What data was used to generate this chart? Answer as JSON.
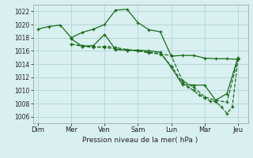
{
  "background_color": "#d8f0f0",
  "grid_color": "#b8d8d8",
  "line_color": "#1a6b1a",
  "title": "Pression niveau de la mer( hPa )",
  "ylabel_ticks": [
    1006,
    1008,
    1010,
    1012,
    1014,
    1016,
    1018,
    1020,
    1022
  ],
  "ylim": [
    1005.0,
    1023.0
  ],
  "xlabels": [
    "Dim",
    "Mer",
    "Ven",
    "Sam",
    "Lun",
    "Mar",
    "Jeu"
  ],
  "xtick_pos": [
    0,
    1,
    2,
    3,
    4,
    5,
    6
  ],
  "series": [
    {
      "x": [
        0,
        0.33,
        0.67,
        1.0,
        1.33,
        1.67,
        2.0,
        2.33,
        2.67,
        3.0,
        3.33,
        3.67,
        4.0,
        4.33,
        4.67,
        5.0,
        5.33,
        5.67,
        6.0
      ],
      "y": [
        1019.3,
        1019.7,
        1019.9,
        1018.0,
        1018.8,
        1019.3,
        1020.0,
        1022.2,
        1022.3,
        1020.3,
        1019.2,
        1018.9,
        1015.2,
        1015.3,
        1015.3,
        1014.9,
        1014.8,
        1014.8,
        1014.7
      ],
      "dashed": false
    },
    {
      "x": [
        1.0,
        1.33,
        1.67,
        2.0,
        2.33,
        2.67,
        3.0,
        3.33,
        3.67,
        4.0,
        4.33,
        4.67,
        5.0,
        5.33,
        5.67,
        6.0
      ],
      "y": [
        1017.8,
        1016.7,
        1016.8,
        1018.5,
        1016.2,
        1016.1,
        1016.1,
        1016.0,
        1015.8,
        1013.5,
        1010.9,
        1010.8,
        1010.8,
        1008.5,
        1009.5,
        1015.0
      ],
      "dashed": false
    },
    {
      "x": [
        1.0,
        1.33,
        1.67,
        2.0,
        2.33,
        2.67,
        3.0,
        3.33,
        3.67,
        4.0,
        4.33,
        4.67,
        5.0,
        5.33,
        5.67,
        6.0
      ],
      "y": [
        1017.0,
        1016.7,
        1016.5,
        1016.7,
        1016.5,
        1016.2,
        1016.0,
        1015.7,
        1015.5,
        1015.3,
        1011.5,
        1010.5,
        1009.0,
        1008.5,
        1008.2,
        1014.8
      ],
      "dashed": true
    },
    {
      "x": [
        1.0,
        1.33,
        1.67,
        2.0,
        2.33,
        2.67,
        3.0,
        3.33,
        3.67,
        4.0,
        4.33,
        4.5,
        4.67,
        4.83,
        5.0,
        5.17,
        5.33,
        5.5,
        5.67,
        5.83,
        6.0
      ],
      "y": [
        1017.0,
        1016.8,
        1016.6,
        1016.5,
        1016.3,
        1016.1,
        1016.0,
        1015.8,
        1015.6,
        1013.7,
        1011.2,
        1010.5,
        1010.0,
        1009.3,
        1008.8,
        1008.4,
        1008.3,
        1007.5,
        1006.5,
        1007.5,
        1014.7
      ],
      "dashed": true
    }
  ]
}
